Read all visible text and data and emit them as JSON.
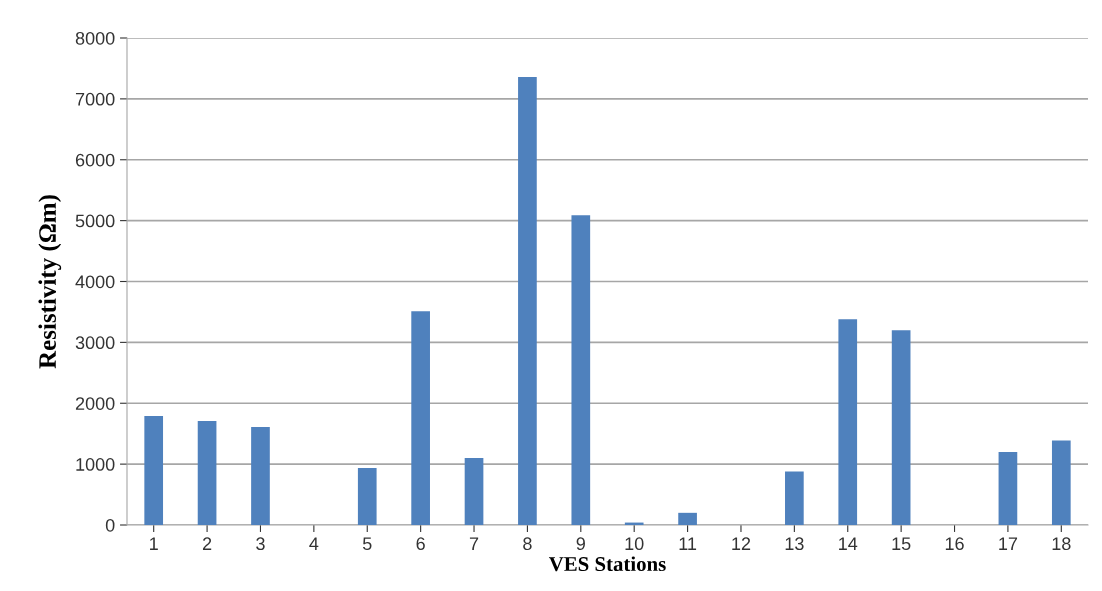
{
  "chart_data": {
    "type": "bar",
    "xlabel": "VES Stations",
    "ylabel": "Resistivity (Ωm)",
    "categories": [
      "1",
      "2",
      "3",
      "4",
      "5",
      "6",
      "7",
      "8",
      "9",
      "10",
      "11",
      "12",
      "13",
      "14",
      "15",
      "16",
      "17",
      "18"
    ],
    "values": [
      1790,
      1710,
      1610,
      0,
      935,
      3510,
      1100,
      7360,
      5090,
      40,
      200,
      0,
      880,
      3380,
      3200,
      0,
      1200,
      1390
    ],
    "color": "#4f81bd",
    "ylim": [
      0,
      8000
    ],
    "yticks": [
      0,
      1000,
      2000,
      3000,
      4000,
      5000,
      6000,
      7000,
      8000
    ],
    "grid": "y"
  }
}
